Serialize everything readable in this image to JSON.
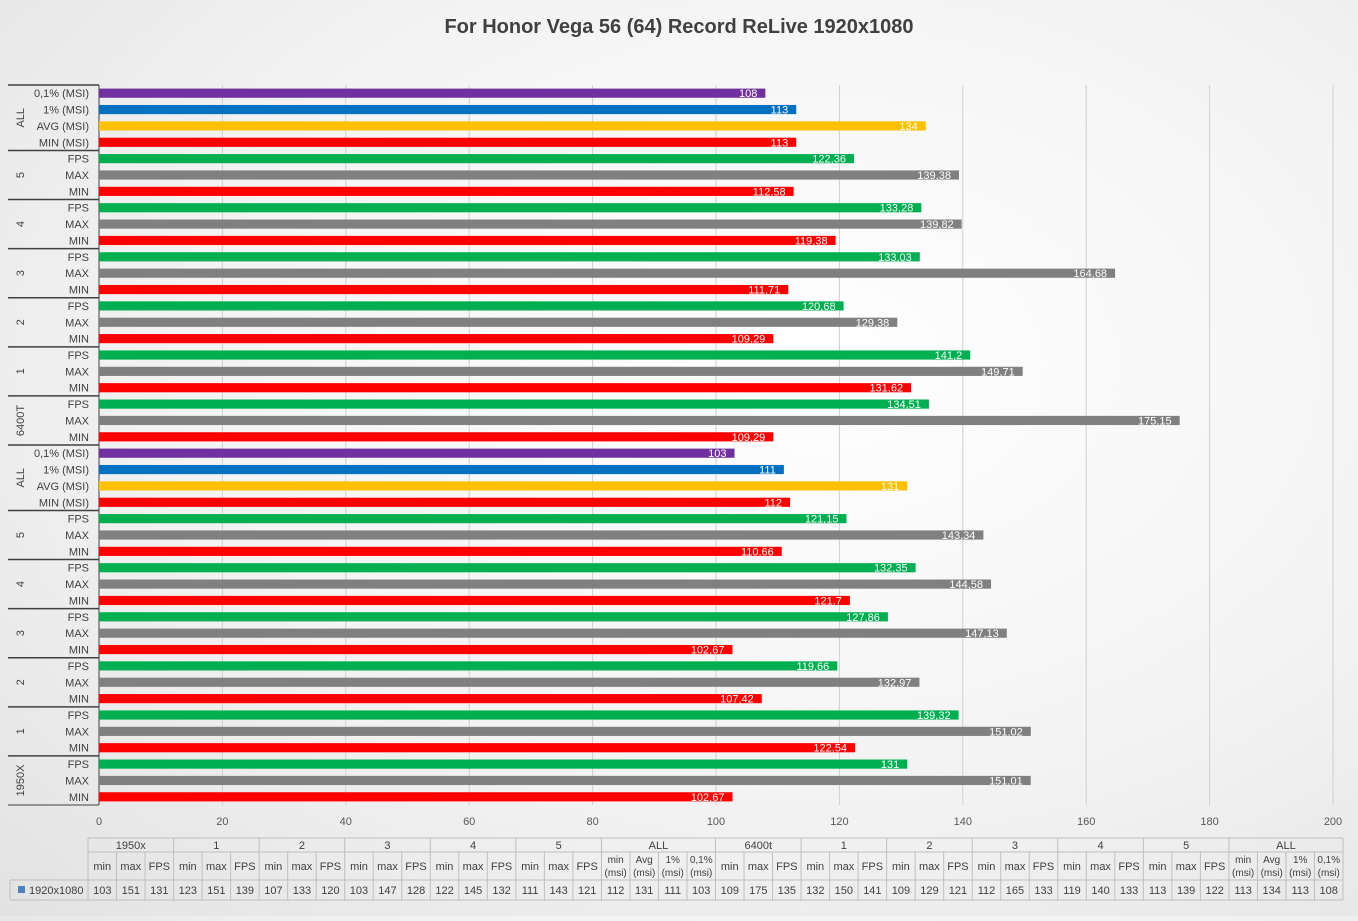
{
  "chart_data": {
    "type": "bar",
    "orientation": "horizontal",
    "title": "For Honor Vega 56 (64)  Record ReLive 1920x1080",
    "xlim": [
      0,
      200
    ],
    "x_ticks": [
      "0",
      "20",
      "40",
      "60",
      "80",
      "100",
      "120",
      "140",
      "160",
      "180",
      "200"
    ],
    "grid": true,
    "colors": {
      "fps": "#00b050",
      "max": "#808080",
      "min": "#ff0000",
      "avg": "#ffc000",
      "p1": "#0070c0",
      "p01": "#7030a0"
    },
    "groups": [
      {
        "name": "ALL",
        "bars": [
          {
            "label": "0,1% (MSI)",
            "value": 108,
            "value_label": "108",
            "kind": "p01"
          },
          {
            "label": "1% (MSI)",
            "value": 113,
            "value_label": "113",
            "kind": "p1"
          },
          {
            "label": "AVG (MSI)",
            "value": 134,
            "value_label": "134",
            "kind": "avg"
          },
          {
            "label": "MIN (MSI)",
            "value": 113,
            "value_label": "113",
            "kind": "min"
          }
        ]
      },
      {
        "name": "5",
        "bars": [
          {
            "label": "FPS",
            "value": 122.36,
            "value_label": "122,36",
            "kind": "fps"
          },
          {
            "label": "MAX",
            "value": 139.38,
            "value_label": "139,38",
            "kind": "max"
          },
          {
            "label": "MIN",
            "value": 112.58,
            "value_label": "112,58",
            "kind": "min"
          }
        ]
      },
      {
        "name": "4",
        "bars": [
          {
            "label": "FPS",
            "value": 133.28,
            "value_label": "133,28",
            "kind": "fps"
          },
          {
            "label": "MAX",
            "value": 139.82,
            "value_label": "139,82",
            "kind": "max"
          },
          {
            "label": "MIN",
            "value": 119.38,
            "value_label": "119,38",
            "kind": "min"
          }
        ]
      },
      {
        "name": "3",
        "bars": [
          {
            "label": "FPS",
            "value": 133.03,
            "value_label": "133,03",
            "kind": "fps"
          },
          {
            "label": "MAX",
            "value": 164.68,
            "value_label": "164,68",
            "kind": "max"
          },
          {
            "label": "MIN",
            "value": 111.71,
            "value_label": "111,71",
            "kind": "min"
          }
        ]
      },
      {
        "name": "2",
        "bars": [
          {
            "label": "FPS",
            "value": 120.68,
            "value_label": "120,68",
            "kind": "fps"
          },
          {
            "label": "MAX",
            "value": 129.38,
            "value_label": "129,38",
            "kind": "max"
          },
          {
            "label": "MIN",
            "value": 109.29,
            "value_label": "109,29",
            "kind": "min"
          }
        ]
      },
      {
        "name": "1",
        "bars": [
          {
            "label": "FPS",
            "value": 141.2,
            "value_label": "141,2",
            "kind": "fps"
          },
          {
            "label": "MAX",
            "value": 149.71,
            "value_label": "149,71",
            "kind": "max"
          },
          {
            "label": "MIN",
            "value": 131.62,
            "value_label": "131,62",
            "kind": "min"
          }
        ]
      },
      {
        "name": "6400T",
        "bars": [
          {
            "label": "FPS",
            "value": 134.51,
            "value_label": "134,51",
            "kind": "fps"
          },
          {
            "label": "MAX",
            "value": 175.15,
            "value_label": "175,15",
            "kind": "max"
          },
          {
            "label": "MIN",
            "value": 109.29,
            "value_label": "109,29",
            "kind": "min"
          }
        ]
      },
      {
        "name": "ALL",
        "bars": [
          {
            "label": "0,1% (MSI)",
            "value": 103,
            "value_label": "103",
            "kind": "p01"
          },
          {
            "label": "1% (MSI)",
            "value": 111,
            "value_label": "111",
            "kind": "p1"
          },
          {
            "label": "AVG (MSI)",
            "value": 131,
            "value_label": "131",
            "kind": "avg"
          },
          {
            "label": "MIN (MSI)",
            "value": 112,
            "value_label": "112",
            "kind": "min"
          }
        ]
      },
      {
        "name": "5",
        "bars": [
          {
            "label": "FPS",
            "value": 121.15,
            "value_label": "121,15",
            "kind": "fps"
          },
          {
            "label": "MAX",
            "value": 143.34,
            "value_label": "143,34",
            "kind": "max"
          },
          {
            "label": "MIN",
            "value": 110.66,
            "value_label": "110,66",
            "kind": "min"
          }
        ]
      },
      {
        "name": "4",
        "bars": [
          {
            "label": "FPS",
            "value": 132.35,
            "value_label": "132,35",
            "kind": "fps"
          },
          {
            "label": "MAX",
            "value": 144.58,
            "value_label": "144,58",
            "kind": "max"
          },
          {
            "label": "MIN",
            "value": 121.7,
            "value_label": "121,7",
            "kind": "min"
          }
        ]
      },
      {
        "name": "3",
        "bars": [
          {
            "label": "FPS",
            "value": 127.86,
            "value_label": "127,86",
            "kind": "fps"
          },
          {
            "label": "MAX",
            "value": 147.13,
            "value_label": "147,13",
            "kind": "max"
          },
          {
            "label": "MIN",
            "value": 102.67,
            "value_label": "102,67",
            "kind": "min"
          }
        ]
      },
      {
        "name": "2",
        "bars": [
          {
            "label": "FPS",
            "value": 119.66,
            "value_label": "119,66",
            "kind": "fps"
          },
          {
            "label": "MAX",
            "value": 132.97,
            "value_label": "132,97",
            "kind": "max"
          },
          {
            "label": "MIN",
            "value": 107.42,
            "value_label": "107,42",
            "kind": "min"
          }
        ]
      },
      {
        "name": "1",
        "bars": [
          {
            "label": "FPS",
            "value": 139.32,
            "value_label": "139,32",
            "kind": "fps"
          },
          {
            "label": "MAX",
            "value": 151.02,
            "value_label": "151,02",
            "kind": "max"
          },
          {
            "label": "MIN",
            "value": 122.54,
            "value_label": "122,54",
            "kind": "min"
          }
        ]
      },
      {
        "name": "1950X",
        "bars": [
          {
            "label": "FPS",
            "value": 131,
            "value_label": "131",
            "kind": "fps"
          },
          {
            "label": "MAX",
            "value": 151.01,
            "value_label": "151,01",
            "kind": "max"
          },
          {
            "label": "MIN",
            "value": 102.67,
            "value_label": "102,67",
            "kind": "min"
          }
        ]
      }
    ],
    "data_table": {
      "series_name": "1920x1080",
      "groups": [
        {
          "name": "1950x",
          "cols": [
            [
              "min"
            ],
            [
              "max"
            ],
            [
              "FPS"
            ]
          ]
        },
        {
          "name": "1",
          "cols": [
            [
              "min"
            ],
            [
              "max"
            ],
            [
              "FPS"
            ]
          ]
        },
        {
          "name": "2",
          "cols": [
            [
              "min"
            ],
            [
              "max"
            ],
            [
              "FPS"
            ]
          ]
        },
        {
          "name": "3",
          "cols": [
            [
              "min"
            ],
            [
              "max"
            ],
            [
              "FPS"
            ]
          ]
        },
        {
          "name": "4",
          "cols": [
            [
              "min"
            ],
            [
              "max"
            ],
            [
              "FPS"
            ]
          ]
        },
        {
          "name": "5",
          "cols": [
            [
              "min"
            ],
            [
              "max"
            ],
            [
              "FPS"
            ]
          ]
        },
        {
          "name": "ALL",
          "cols": [
            [
              "min",
              "(msi)"
            ],
            [
              "Avg",
              "(msi)"
            ],
            [
              "1%",
              "(msi)"
            ],
            [
              "0,1%",
              "(msi)"
            ]
          ]
        },
        {
          "name": "6400t",
          "cols": [
            [
              "min"
            ],
            [
              "max"
            ],
            [
              "FPS"
            ]
          ]
        },
        {
          "name": "1",
          "cols": [
            [
              "min"
            ],
            [
              "max"
            ],
            [
              "FPS"
            ]
          ]
        },
        {
          "name": "2",
          "cols": [
            [
              "min"
            ],
            [
              "max"
            ],
            [
              "FPS"
            ]
          ]
        },
        {
          "name": "3",
          "cols": [
            [
              "min"
            ],
            [
              "max"
            ],
            [
              "FPS"
            ]
          ]
        },
        {
          "name": "4",
          "cols": [
            [
              "min"
            ],
            [
              "max"
            ],
            [
              "FPS"
            ]
          ]
        },
        {
          "name": "5",
          "cols": [
            [
              "min"
            ],
            [
              "max"
            ],
            [
              "FPS"
            ]
          ]
        },
        {
          "name": "ALL",
          "cols": [
            [
              "min",
              "(msi)"
            ],
            [
              "Avg",
              "(msi)"
            ],
            [
              "1%",
              "(msi)"
            ],
            [
              "0,1%",
              "(msi)"
            ]
          ]
        }
      ],
      "values": [
        "103",
        "151",
        "131",
        "123",
        "151",
        "139",
        "107",
        "133",
        "120",
        "103",
        "147",
        "128",
        "122",
        "145",
        "132",
        "111",
        "143",
        "121",
        "112",
        "131",
        "111",
        "103",
        "109",
        "175",
        "135",
        "132",
        "150",
        "141",
        "109",
        "129",
        "121",
        "112",
        "165",
        "133",
        "119",
        "140",
        "133",
        "113",
        "139",
        "122",
        "113",
        "134",
        "113",
        "108"
      ]
    }
  }
}
